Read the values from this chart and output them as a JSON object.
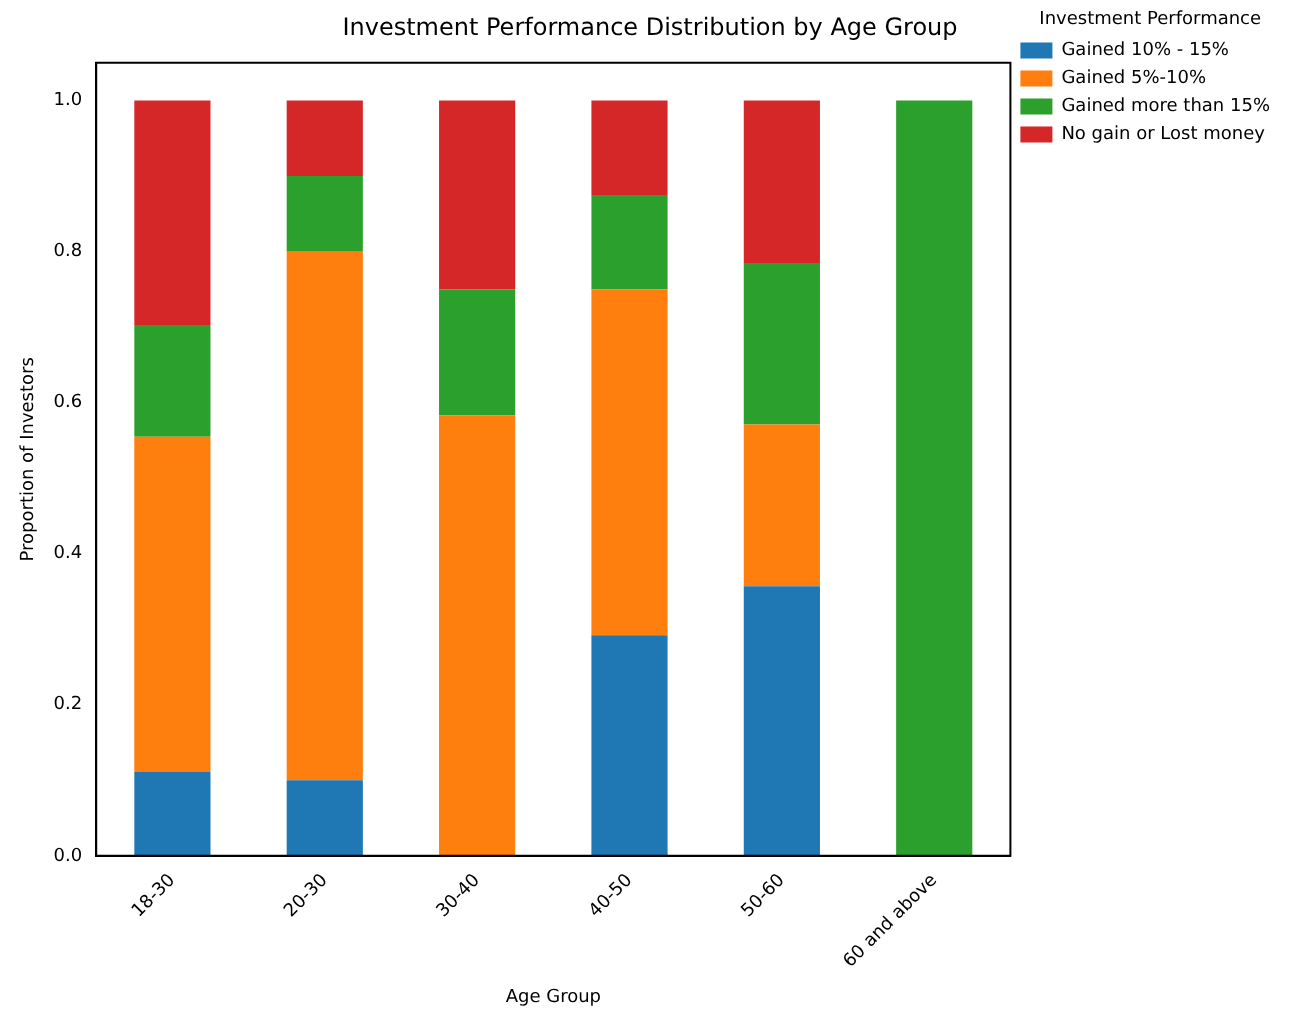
{
  "chart_data": {
    "type": "bar",
    "title": "Investment Performance Distribution by Age Group",
    "xlabel": "Age Group",
    "ylabel": "Proportion of Investors",
    "legend_title": "Investment Performance",
    "categories": [
      "18-30",
      "20-30",
      "30-40",
      "40-50",
      "50-60",
      "60 and above"
    ],
    "stacked": true,
    "ylim": [
      0,
      1.05
    ],
    "yticks": [
      {
        "value": 0,
        "label": "0.0"
      },
      {
        "value": 0.2,
        "label": "0.2"
      },
      {
        "value": 0.4,
        "label": "0.4"
      },
      {
        "value": 0.6,
        "label": "0.6"
      },
      {
        "value": 0.8,
        "label": "0.8"
      },
      {
        "value": 1,
        "label": "1.0"
      }
    ],
    "grid": false,
    "legend": "top right",
    "series": [
      {
        "name": "Gained 10% - 15%",
        "color": "#1f77b4",
        "values": [
          0.111,
          0.1,
          0,
          0.292,
          0.357,
          0
        ]
      },
      {
        "name": "Gained 5%-10%",
        "color": "#ff7f0e",
        "values": [
          0.444,
          0.7,
          0.583,
          0.458,
          0.214,
          0
        ]
      },
      {
        "name": "Gained more than 15%",
        "color": "#2ca02c",
        "values": [
          0.148,
          0.1,
          0.167,
          0.125,
          0.214,
          1
        ]
      },
      {
        "name": "No gain or Lost money",
        "color": "#d62728",
        "values": [
          0.297,
          0.1,
          0.25,
          0.125,
          0.215,
          0
        ]
      }
    ]
  }
}
